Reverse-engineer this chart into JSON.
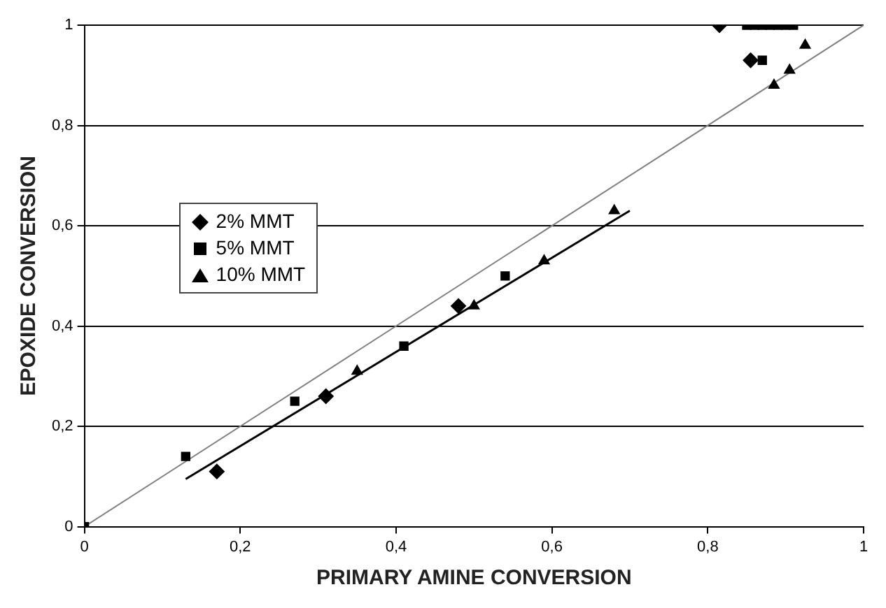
{
  "chart_data": {
    "type": "scatter",
    "xlabel": "PRIMARY AMINE CONVERSION",
    "ylabel": "EPOXIDE CONVERSION",
    "xlim": [
      0,
      1
    ],
    "ylim": [
      0,
      1
    ],
    "xticks": [
      0,
      {
        "value": 0.2,
        "label": "0,2"
      },
      {
        "value": 0.4,
        "label": "0,4"
      },
      {
        "value": 0.6,
        "label": "0,6"
      },
      {
        "value": 0.8,
        "label": "0,8"
      },
      1
    ],
    "yticks": [
      0,
      {
        "value": 0.2,
        "label": "0,2"
      },
      {
        "value": 0.4,
        "label": "0,4"
      },
      {
        "value": 0.6,
        "label": "0,6"
      },
      {
        "value": 0.8,
        "label": "0,8"
      },
      1
    ],
    "grid": "y",
    "legend": "left",
    "series": [
      {
        "name": "2% MMT",
        "color": "#000000",
        "marker": "diamond",
        "x": [
          0.17,
          0.31,
          0.48,
          0.815,
          0.855
        ],
        "values": [
          0.11,
          0.26,
          0.44,
          1.0,
          0.93
        ]
      },
      {
        "name": "5% MMT",
        "color": "#000000",
        "marker": "square",
        "x": [
          0,
          0.13,
          0.27,
          0.41,
          0.54,
          0.85,
          0.86,
          0.87,
          0.88,
          0.89,
          0.9,
          0.91,
          0.87
        ],
        "values": [
          0,
          0.14,
          0.25,
          0.36,
          0.5,
          1.0,
          1.0,
          1.0,
          1.0,
          1.0,
          1.0,
          1.0,
          0.93
        ]
      },
      {
        "name": "10% MMT",
        "color": "#000000",
        "marker": "triangle",
        "x": [
          0.35,
          0.5,
          0.59,
          0.68,
          0.885,
          0.905,
          0.925
        ],
        "values": [
          0.31,
          0.44,
          0.53,
          0.63,
          0.88,
          0.91,
          0.96
        ]
      },
      {
        "type": "line",
        "color": "#000000",
        "marker": "none",
        "x": [
          0.13,
          0.7
        ],
        "values": [
          0.095,
          0.63
        ]
      },
      {
        "type": "line",
        "color": "#808080",
        "marker": "none",
        "x": [
          0,
          1
        ],
        "values": [
          0,
          1
        ]
      }
    ]
  }
}
